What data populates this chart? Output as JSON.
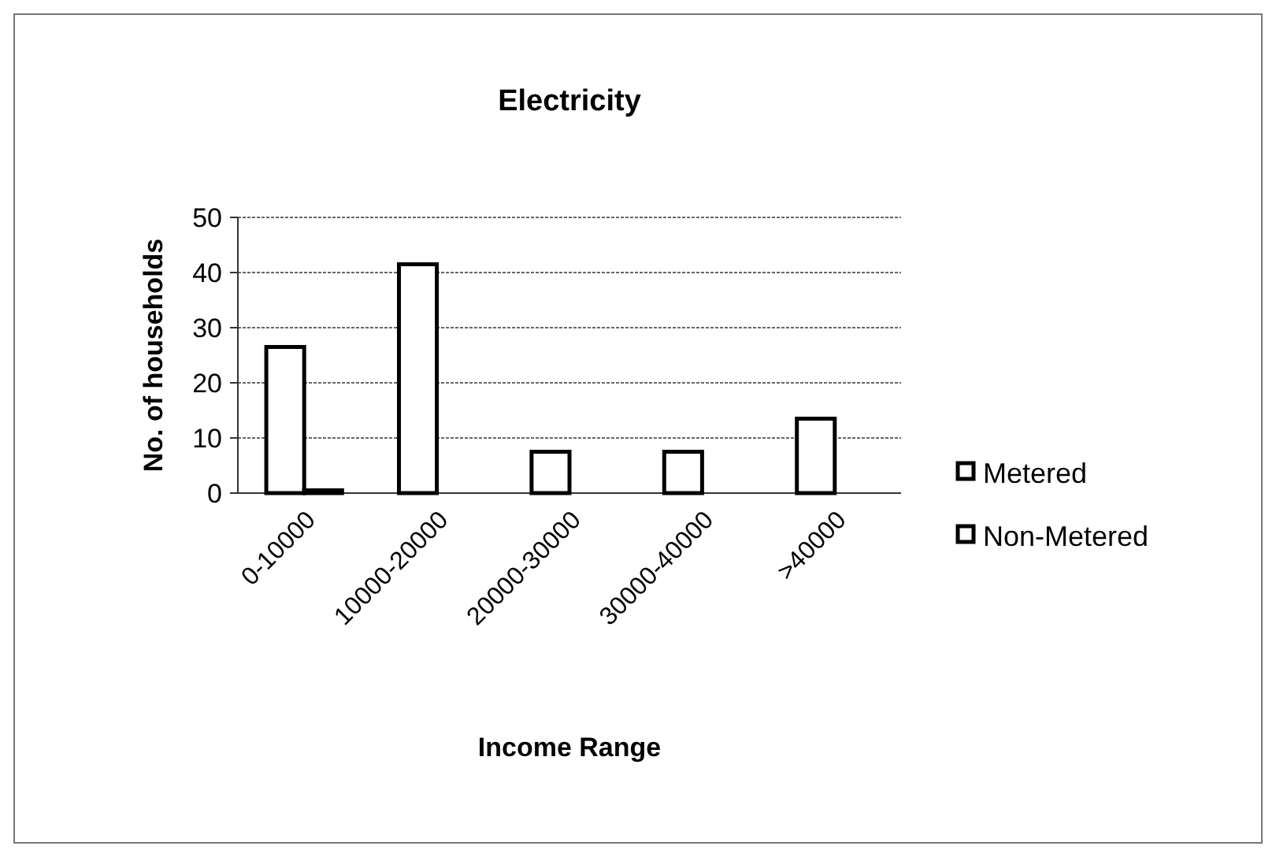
{
  "chart_data": {
    "type": "bar",
    "title": "Electricity",
    "xlabel": "Income Range",
    "ylabel": "No. of households",
    "categories": [
      "0-10000",
      "10000-20000",
      "20000-30000",
      "30000-40000",
      ">40000"
    ],
    "series": [
      {
        "name": "Metered",
        "color": "#ffffff",
        "values": [
          26.5,
          41.5,
          7.5,
          7.5,
          13.5
        ]
      },
      {
        "name": "Non-Metered",
        "color": "#ffffff",
        "values": [
          0.5,
          0,
          0,
          0,
          0
        ]
      }
    ],
    "ylim": [
      0,
      50
    ],
    "yticks": [
      0,
      10,
      20,
      30,
      40,
      50
    ],
    "grid": "y",
    "legend": "right"
  }
}
